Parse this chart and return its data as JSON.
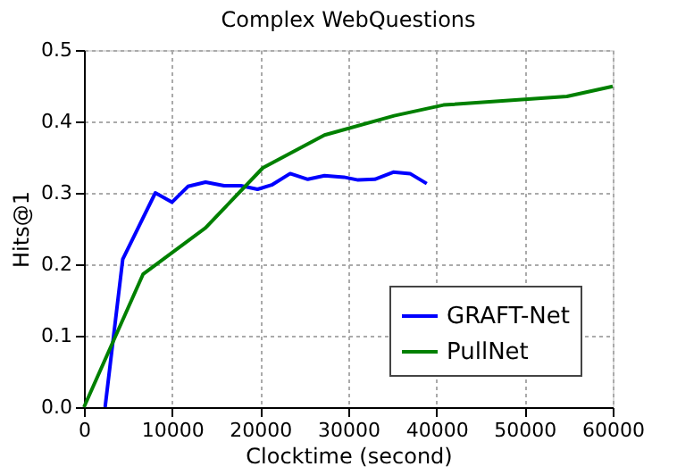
{
  "chart_data": {
    "type": "line",
    "title": "Complex WebQuestions",
    "xlabel": "Clocktime (second)",
    "ylabel": "Hits@1",
    "xlim": [
      0,
      60000
    ],
    "xticks": [
      0,
      10000,
      20000,
      30000,
      40000,
      50000,
      60000
    ],
    "ylim": [
      0,
      0.5
    ],
    "yticks": [
      {
        "value": 0,
        "label": "0.0"
      },
      0.1,
      0.2,
      0.3,
      0.4,
      0.5
    ],
    "grid": true,
    "legend": "bottom right",
    "line_style": "solid",
    "marker": "none",
    "series": [
      {
        "name": "GRAFT-Net",
        "color": "#0000ff",
        "x": [
          2400,
          4400,
          8100,
          10000,
          11800,
          13800,
          15900,
          17800,
          19700,
          21300,
          23400,
          25400,
          27300,
          29500,
          31100,
          33000,
          35100,
          37000,
          38900
        ],
        "values": [
          0.0,
          0.207,
          0.3,
          0.287,
          0.309,
          0.315,
          0.31,
          0.31,
          0.305,
          0.311,
          0.327,
          0.319,
          0.324,
          0.322,
          0.318,
          0.319,
          0.329,
          0.327,
          0.313
        ]
      },
      {
        "name": "PullNet",
        "color": "#008000",
        "x": [
          0,
          6700,
          13800,
          20300,
          27300,
          35200,
          40800,
          54800,
          60000
        ],
        "values": [
          0.0,
          0.186,
          0.251,
          0.335,
          0.381,
          0.408,
          0.423,
          0.435,
          0.449
        ]
      }
    ]
  }
}
